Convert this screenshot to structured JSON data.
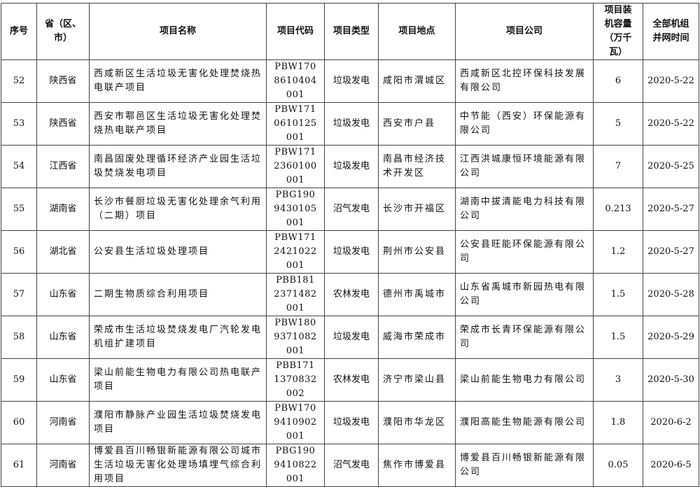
{
  "table": {
    "header": [
      "序号",
      "省（区、市）",
      "项目名称",
      "项目代码",
      "项目类型",
      "项目地点",
      "项目公司",
      "项目装机容量（万千瓦）",
      "全部机组并网时间"
    ],
    "rows": [
      [
        52,
        "陕西省",
        "西咸新区生活垃圾无害化处理焚烧热电联产项目",
        "PBW1708610404001",
        "垃圾发电",
        "咸阳市渭城区",
        "西咸新区北控环保科技发展有限公司",
        6,
        "2020-5-22"
      ],
      [
        53,
        "陕西省",
        "西安市鄠邑区生活垃圾无害化处理焚烧热电联产项目",
        "PBW1710610125001",
        "垃圾发电",
        "西安市户县",
        "中节能（西安）环保能源有限公司",
        5,
        "2020-5-22"
      ],
      [
        54,
        "江西省",
        "南昌固废处理循环经济产业园生活垃圾焚烧发电项目",
        "PBW1712360100001",
        "垃圾发电",
        "南昌市经济技术开发区",
        "江西洪城康恒环境能源有限公司",
        7,
        "2020-5-25"
      ],
      [
        55,
        "湖南省",
        "长沙市餐厨垃圾无害化处理余气利用（二期）项目",
        "PBG1909430105001",
        "沼气发电",
        "长沙市开福区",
        "湖南中拔清能电力科技有限公司",
        0.213,
        "2020-5-27"
      ],
      [
        56,
        "湖北省",
        "公安县生活垃圾处理项目",
        "PBW1712421022001",
        "垃圾发电",
        "荆州市公安县",
        "公安县旺能环保能源有限公司",
        1.2,
        "2020-5-27"
      ],
      [
        57,
        "山东省",
        "二期生物质综合利用项目",
        "PBB1812371482001",
        "农林发电",
        "德州市禹城市",
        "山东省禹城市新园热电有限公司",
        1.5,
        "2020-5-28"
      ],
      [
        58,
        "山东省",
        "荣成市生活垃圾焚烧发电厂汽轮发电机组扩建项目",
        "PBW1809371082001",
        "垃圾发电",
        "威海市荣成市",
        "荣成市长青环保能源有限公司",
        1.5,
        "2020-5-29"
      ],
      [
        59,
        "山东省",
        "梁山前能生物电力有限公司热电联产项目",
        "PBB1711370832002",
        "农林发电",
        "济宁市梁山县",
        "梁山前能生物电力有限公司",
        3,
        "2020-5-30"
      ],
      [
        60,
        "河南省",
        "濮阳市静脉产业园生活垃圾焚烧发电项目",
        "PBW1709410902001",
        "垃圾发电",
        "濮阳市华龙区",
        "濮阳高能生物能源有限公司",
        1.8,
        "2020-6-2"
      ],
      [
        61,
        "河南省",
        "博爱县百川畅银新能源有限公司城市生活垃圾无害化处理场填埋气综合利用项目",
        "PBG1909410822001",
        "沼气发电",
        "焦作市博爱县",
        "博爱县百川畅银新能源有限公司",
        0.05,
        "2020-6-5"
      ]
    ]
  }
}
